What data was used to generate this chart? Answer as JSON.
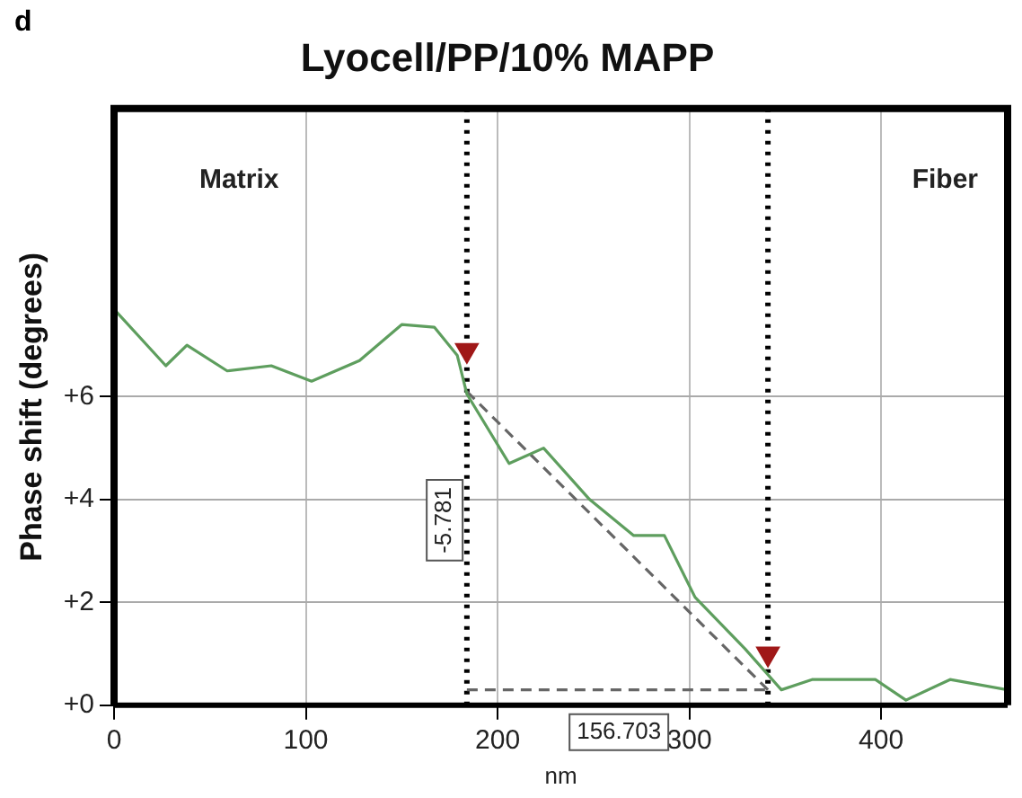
{
  "chart_data": {
    "type": "line",
    "title": "Lyocell/PP/10% MAPP",
    "xlabel": "nm",
    "ylabel": "Phase shift (degrees)",
    "xlim": [
      0,
      466
    ],
    "xticks": [
      0,
      100,
      200,
      300,
      400
    ],
    "ylim": [
      0,
      11.6
    ],
    "yticks": [
      {
        "value": 0,
        "label": "+0"
      },
      {
        "value": 2,
        "label": "+2"
      },
      {
        "value": 4,
        "label": "+4"
      },
      {
        "value": 6,
        "label": "+6"
      }
    ],
    "grid": true,
    "legend": false,
    "marker": "none",
    "series": [
      {
        "color": "#5e9e5e",
        "x": [
          0,
          27,
          38,
          59,
          82,
          103,
          128,
          150,
          167,
          179,
          184,
          206,
          224,
          248,
          271,
          287,
          303,
          329,
          348,
          364,
          397,
          413,
          436,
          466
        ],
        "values": [
          7.7,
          6.6,
          7.0,
          6.5,
          6.6,
          6.3,
          6.7,
          7.4,
          7.35,
          6.8,
          6.05,
          4.7,
          5.0,
          4.0,
          3.3,
          3.3,
          2.1,
          1.1,
          0.3,
          0.5,
          0.5,
          0.1,
          0.5,
          0.3
        ]
      },
      {
        "color": "#666666",
        "line_style": "dashed",
        "x": [
          184,
          341
        ],
        "values": [
          6.1,
          0.3
        ]
      },
      {
        "color": "#666666",
        "line_style": "dashed",
        "x": [
          184,
          341
        ],
        "values": [
          0.3,
          0.3
        ]
      },
      {
        "type": "scatter",
        "color": "#a01818",
        "marker": "triangle",
        "x": [
          184,
          341
        ],
        "values": [
          6.9,
          1.0
        ]
      }
    ],
    "ref_lines": [
      {
        "axis": "x",
        "value": 184,
        "color": "#000000",
        "line_style": "dotted"
      },
      {
        "axis": "x",
        "value": 341,
        "color": "#000000",
        "line_style": "dotted"
      }
    ],
    "annotations": [
      "d",
      "Matrix",
      "Fiber",
      "-5.781",
      "156.703"
    ]
  }
}
